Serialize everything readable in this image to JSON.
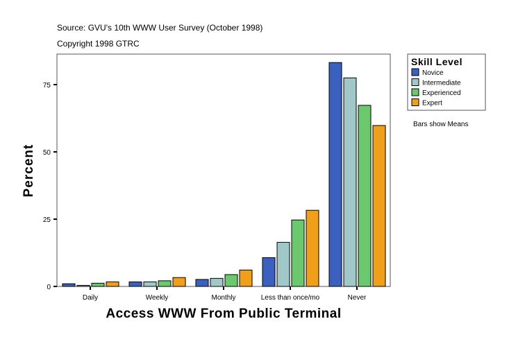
{
  "source_line": "Source: GVU's 10th WWW User Survey (October 1998)",
  "copyright_line": "Copyright 1998 GTRC",
  "note": "Bars show Means",
  "chart_data": {
    "type": "bar",
    "xlabel": "Access WWW From Public Terminal",
    "ylabel": "Percent",
    "ylim": [
      0,
      86
    ],
    "yticks": [
      0,
      25,
      50,
      75
    ],
    "categories": [
      "Daily",
      "Weekly",
      "Monthly",
      "Less than once/mo",
      "Never"
    ],
    "legend_title": "Skill Level",
    "legend_position": "right",
    "grid": false,
    "series": [
      {
        "name": "Novice",
        "color": "#3a60c0",
        "values": [
          1.0,
          1.7,
          2.6,
          10.7,
          83.2
        ]
      },
      {
        "name": "Intermediate",
        "color": "#a0c8c8",
        "values": [
          0.4,
          1.7,
          3.0,
          16.4,
          77.5
        ]
      },
      {
        "name": "Experienced",
        "color": "#6cc86c",
        "values": [
          1.2,
          2.1,
          4.4,
          24.7,
          67.3
        ]
      },
      {
        "name": "Expert",
        "color": "#f0a018",
        "values": [
          1.7,
          3.3,
          6.1,
          28.3,
          59.8
        ]
      }
    ]
  }
}
